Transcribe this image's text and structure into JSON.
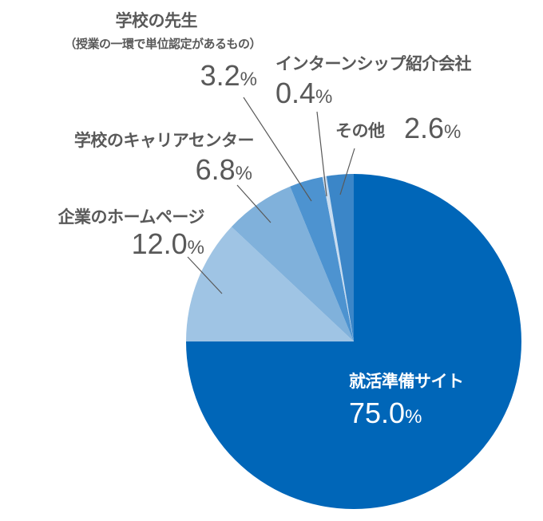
{
  "chart_data": {
    "type": "pie",
    "start_angle": "12 o'clock",
    "direction": "clockwise",
    "slices": [
      {
        "label": "就活準備サイト",
        "value": 75.0,
        "display": "75.0",
        "color": "#0066b8"
      },
      {
        "label": "企業のホームページ",
        "value": 12.0,
        "display": "12.0",
        "color": "#9fc4e4"
      },
      {
        "label": "学校のキャリアセンター",
        "value": 6.8,
        "display": "6.8",
        "color": "#80b1db"
      },
      {
        "label": "学校の先生",
        "sublabel": "（授業の一環で単位認定があるもの）",
        "value": 3.2,
        "display": "3.2",
        "color": "#4d93d0"
      },
      {
        "label": "インターンシップ紹介会社",
        "value": 0.4,
        "display": "0.4",
        "color": "#c8dcf0"
      },
      {
        "label": "その他",
        "value": 2.6,
        "display": "2.6",
        "color": "#3b86c8"
      }
    ],
    "unit": "%"
  }
}
